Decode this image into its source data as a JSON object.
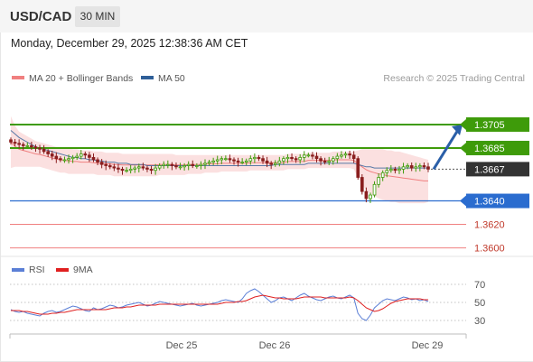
{
  "header": {
    "symbol": "USD/CAD",
    "interval": "30 MIN",
    "datetime": "Monday, December 29, 2025 12:38:36 AM CET"
  },
  "legend": {
    "bollinger_label": "MA 20 + Bollinger Bands",
    "ma50_label": "MA 50",
    "bollinger_color": "#f08080",
    "ma50_color": "#2f5f98",
    "watermark": "Research © 2025 Trading Central"
  },
  "rsi_legend": {
    "rsi_label": "RSI",
    "ma_label": "9MA",
    "rsi_color": "#5b7fd6",
    "ma_color": "#e02020"
  },
  "colors": {
    "resistance": "#3e9b0a",
    "support": "#2a6ccf",
    "minor_support": "#f08080",
    "current": "#333333",
    "arrow": "#2a5fa8",
    "bull_candle": "#3e9b0a",
    "bear_candle": "#8a1f1f"
  },
  "chart_data": {
    "type": "candlestick",
    "ylim": [
      1.3592,
      1.3738
    ],
    "x_labels": [
      "Dec 25",
      "Dec 26",
      "Dec 29"
    ],
    "levels": [
      {
        "value": 1.3705,
        "label": "1.3705",
        "kind": "resistance"
      },
      {
        "value": 1.3685,
        "label": "1.3685",
        "kind": "resistance"
      },
      {
        "value": 1.3667,
        "label": "1.3667",
        "kind": "current"
      },
      {
        "value": 1.364,
        "label": "1.3640",
        "kind": "support"
      },
      {
        "value": 1.362,
        "label": "1.3620",
        "kind": "minor"
      },
      {
        "value": 1.36,
        "label": "1.3600",
        "kind": "minor"
      }
    ],
    "closes": [
      1.369,
      1.3689,
      1.3688,
      1.3687,
      1.3687,
      1.3686,
      1.3685,
      1.3684,
      1.3682,
      1.368,
      1.3678,
      1.3676,
      1.3675,
      1.3675,
      1.3676,
      1.3677,
      1.3678,
      1.368,
      1.3679,
      1.3677,
      1.3675,
      1.3673,
      1.3671,
      1.367,
      1.3669,
      1.3668,
      1.3667,
      1.3666,
      1.3666,
      1.3667,
      1.3668,
      1.3669,
      1.3668,
      1.3667,
      1.3666,
      1.3668,
      1.367,
      1.3671,
      1.3671,
      1.367,
      1.3669,
      1.3669,
      1.367,
      1.3671,
      1.367,
      1.367,
      1.3671,
      1.3672,
      1.3673,
      1.3674,
      1.3675,
      1.3676,
      1.3676,
      1.3675,
      1.3674,
      1.3673,
      1.3673,
      1.3674,
      1.3676,
      1.3677,
      1.3676,
      1.3674,
      1.3672,
      1.3671,
      1.3672,
      1.3674,
      1.3676,
      1.3677,
      1.3676,
      1.3675,
      1.3677,
      1.3679,
      1.3679,
      1.3678,
      1.3676,
      1.3674,
      1.3673,
      1.3674,
      1.3676,
      1.3678,
      1.3679,
      1.368,
      1.3679,
      1.3676,
      1.366,
      1.3648,
      1.3642,
      1.3645,
      1.3654,
      1.366,
      1.3664,
      1.3666,
      1.3667,
      1.3666,
      1.3667,
      1.3669,
      1.367,
      1.3668,
      1.3669,
      1.367,
      1.3669,
      1.3667
    ],
    "bb_upper": [
      1.3712,
      1.3704,
      1.3699,
      1.3697,
      1.3695,
      1.3693,
      1.3691,
      1.369,
      1.3689,
      1.3688,
      1.3687,
      1.3686,
      1.3686,
      1.3685,
      1.3685,
      1.3684,
      1.3684,
      1.3683,
      1.3683,
      1.3683,
      1.3682,
      1.3682,
      1.3682,
      1.3681,
      1.3681,
      1.3681,
      1.3681,
      1.368,
      1.368,
      1.368,
      1.368,
      1.368,
      1.368,
      1.368,
      1.368,
      1.368,
      1.368,
      1.368,
      1.368,
      1.368,
      1.3679,
      1.3679,
      1.3679,
      1.3679,
      1.3679,
      1.3679,
      1.3679,
      1.3679,
      1.3679,
      1.3679,
      1.3679,
      1.3679,
      1.3679,
      1.3679,
      1.3679,
      1.3679,
      1.3679,
      1.3679,
      1.3679,
      1.3679,
      1.3679,
      1.3679,
      1.3679,
      1.3679,
      1.3679,
      1.3679,
      1.3679,
      1.368,
      1.368,
      1.368,
      1.368,
      1.368,
      1.3681,
      1.3681,
      1.3681,
      1.3681,
      1.3681,
      1.3681,
      1.3682,
      1.3682,
      1.3682,
      1.3682,
      1.3682,
      1.3682,
      1.3683,
      1.3684,
      1.3684,
      1.3684,
      1.3684,
      1.3684,
      1.3684,
      1.3683,
      1.3683,
      1.3682,
      1.3682,
      1.3681,
      1.368,
      1.3679,
      1.3678,
      1.3677,
      1.3676,
      1.3675
    ],
    "bb_lower": [
      1.3668,
      1.3669,
      1.3669,
      1.3669,
      1.3669,
      1.3669,
      1.3669,
      1.3669,
      1.3668,
      1.3667,
      1.3666,
      1.3665,
      1.3664,
      1.3664,
      1.3663,
      1.3663,
      1.3663,
      1.3663,
      1.3663,
      1.3663,
      1.3663,
      1.3662,
      1.3662,
      1.3662,
      1.3662,
      1.3661,
      1.3661,
      1.3661,
      1.3661,
      1.3661,
      1.3661,
      1.3661,
      1.3661,
      1.3661,
      1.3661,
      1.3661,
      1.3662,
      1.3662,
      1.3662,
      1.3662,
      1.3662,
      1.3662,
      1.3662,
      1.3663,
      1.3663,
      1.3663,
      1.3663,
      1.3664,
      1.3664,
      1.3664,
      1.3664,
      1.3665,
      1.3665,
      1.3665,
      1.3665,
      1.3665,
      1.3665,
      1.3665,
      1.3666,
      1.3666,
      1.3666,
      1.3666,
      1.3666,
      1.3666,
      1.3666,
      1.3666,
      1.3666,
      1.3667,
      1.3667,
      1.3667,
      1.3667,
      1.3667,
      1.3668,
      1.3668,
      1.3668,
      1.3668,
      1.3668,
      1.3668,
      1.3668,
      1.3668,
      1.3668,
      1.3668,
      1.3668,
      1.3667,
      1.366,
      1.3654,
      1.3649,
      1.3646,
      1.3644,
      1.3642,
      1.3641,
      1.364,
      1.3639,
      1.3639,
      1.3638,
      1.3638,
      1.3638,
      1.3638,
      1.3638,
      1.3638,
      1.3638,
      1.3639
    ],
    "ma50": [
      1.37,
      1.3697,
      1.3694,
      1.3692,
      1.369,
      1.3688,
      1.3686,
      1.3685,
      1.3684,
      1.3683,
      1.3682,
      1.3681,
      1.368,
      1.3679,
      1.3678,
      1.3677,
      1.3677,
      1.3676,
      1.3676,
      1.3675,
      1.3675,
      1.3674,
      1.3674,
      1.3673,
      1.3673,
      1.3673,
      1.3672,
      1.3672,
      1.3672,
      1.3671,
      1.3671,
      1.3671,
      1.3671,
      1.367,
      1.367,
      1.367,
      1.367,
      1.367,
      1.367,
      1.367,
      1.367,
      1.367,
      1.367,
      1.367,
      1.367,
      1.367,
      1.367,
      1.367,
      1.367,
      1.367,
      1.367,
      1.367,
      1.367,
      1.367,
      1.367,
      1.367,
      1.367,
      1.367,
      1.367,
      1.367,
      1.367,
      1.367,
      1.367,
      1.367,
      1.3671,
      1.3671,
      1.3671,
      1.3671,
      1.3671,
      1.3671,
      1.3671,
      1.3671,
      1.3672,
      1.3672,
      1.3672,
      1.3672,
      1.3672,
      1.3672,
      1.3672,
      1.3672,
      1.3672,
      1.3672,
      1.3672,
      1.3672,
      1.3671,
      1.367,
      1.3669,
      1.3669,
      1.3668,
      1.3668,
      1.3668,
      1.3668,
      1.3668,
      1.3668,
      1.3668,
      1.3668,
      1.3668,
      1.3668,
      1.3668,
      1.3668,
      1.3668,
      1.3668
    ],
    "rsi": {
      "ylim": [
        20,
        80
      ],
      "ticks": [
        "70",
        "50",
        "30"
      ],
      "values": [
        42,
        40,
        39,
        40,
        38,
        37,
        36,
        35,
        38,
        40,
        41,
        39,
        40,
        42,
        44,
        46,
        45,
        43,
        41,
        40,
        44,
        42,
        43,
        45,
        47,
        46,
        44,
        45,
        47,
        48,
        49,
        50,
        48,
        46,
        47,
        49,
        51,
        50,
        49,
        48,
        47,
        46,
        47,
        48,
        49,
        47,
        46,
        47,
        48,
        49,
        50,
        52,
        53,
        52,
        51,
        50,
        54,
        60,
        63,
        65,
        62,
        58,
        54,
        50,
        52,
        55,
        56,
        54,
        52,
        55,
        58,
        60,
        57,
        55,
        53,
        52,
        54,
        56,
        57,
        55,
        54,
        56,
        58,
        55,
        38,
        32,
        30,
        36,
        44,
        48,
        52,
        54,
        53,
        52,
        54,
        56,
        55,
        53,
        54,
        52,
        53,
        51
      ],
      "ma_values": [
        41,
        41,
        41,
        40,
        40,
        39,
        38,
        37,
        37,
        37,
        38,
        38,
        39,
        39,
        40,
        41,
        42,
        42,
        42,
        42,
        42,
        42,
        42,
        42,
        43,
        44,
        44,
        44,
        45,
        45,
        46,
        47,
        47,
        47,
        47,
        47,
        48,
        48,
        48,
        48,
        48,
        48,
        48,
        48,
        48,
        48,
        48,
        48,
        48,
        48,
        48,
        49,
        50,
        50,
        50,
        51,
        51,
        52,
        54,
        56,
        57,
        58,
        57,
        56,
        55,
        55,
        54,
        54,
        54,
        54,
        55,
        56,
        56,
        56,
        56,
        56,
        55,
        55,
        55,
        55,
        55,
        55,
        56,
        55,
        52,
        48,
        44,
        42,
        40,
        41,
        43,
        46,
        49,
        51,
        52,
        53,
        54,
        54,
        54,
        54,
        53,
        53
      ]
    }
  }
}
